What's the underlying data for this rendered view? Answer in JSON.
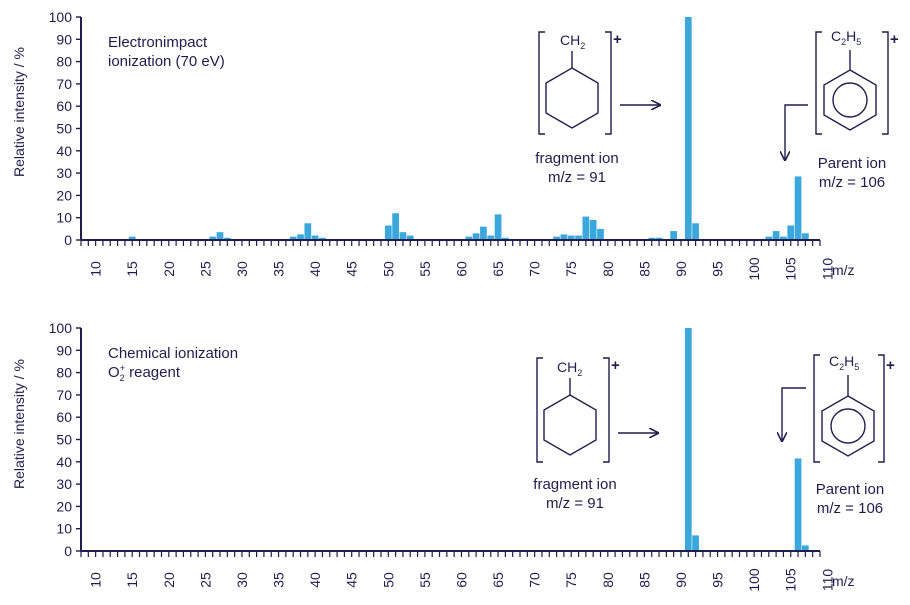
{
  "chart_data": [
    {
      "type": "bar",
      "title": "Electronimpact ionization (70 eV)",
      "title_lines": [
        "Electronimpact",
        "ionization (70 eV)"
      ],
      "xlabel": "m/z",
      "ylabel": "Relative intensity / %",
      "xlim": [
        8,
        109
      ],
      "ylim": [
        0,
        100
      ],
      "xticks": [
        10,
        15,
        20,
        25,
        30,
        35,
        40,
        45,
        50,
        55,
        60,
        65,
        70,
        75,
        80,
        85,
        90,
        95,
        100,
        105,
        110
      ],
      "yticks": [
        0,
        10,
        20,
        30,
        40,
        50,
        60,
        70,
        80,
        90,
        100
      ],
      "color": "#3aa8dc",
      "peaks": [
        {
          "x": 15,
          "y": 1.5
        },
        {
          "x": 26,
          "y": 1.5
        },
        {
          "x": 27,
          "y": 3.5
        },
        {
          "x": 28,
          "y": 1
        },
        {
          "x": 37,
          "y": 1.5
        },
        {
          "x": 38,
          "y": 2.5
        },
        {
          "x": 39,
          "y": 7.5
        },
        {
          "x": 40,
          "y": 2
        },
        {
          "x": 41,
          "y": 1
        },
        {
          "x": 50,
          "y": 6.5
        },
        {
          "x": 51,
          "y": 12
        },
        {
          "x": 52,
          "y": 3.5
        },
        {
          "x": 53,
          "y": 2
        },
        {
          "x": 61,
          "y": 1.5
        },
        {
          "x": 62,
          "y": 3
        },
        {
          "x": 63,
          "y": 6
        },
        {
          "x": 64,
          "y": 2
        },
        {
          "x": 65,
          "y": 11.5
        },
        {
          "x": 66,
          "y": 1
        },
        {
          "x": 73,
          "y": 1.5
        },
        {
          "x": 74,
          "y": 2.5
        },
        {
          "x": 75,
          "y": 2
        },
        {
          "x": 76,
          "y": 2
        },
        {
          "x": 77,
          "y": 10.5
        },
        {
          "x": 78,
          "y": 9
        },
        {
          "x": 79,
          "y": 5
        },
        {
          "x": 86,
          "y": 1
        },
        {
          "x": 87,
          "y": 1
        },
        {
          "x": 89,
          "y": 4
        },
        {
          "x": 91,
          "y": 100
        },
        {
          "x": 92,
          "y": 7.5
        },
        {
          "x": 102,
          "y": 1.5
        },
        {
          "x": 103,
          "y": 4
        },
        {
          "x": 104,
          "y": 1.5
        },
        {
          "x": 105,
          "y": 6.5
        },
        {
          "x": 106,
          "y": 28.5
        },
        {
          "x": 107,
          "y": 3
        }
      ],
      "annotations": {
        "fragment": {
          "formula_main": "CH",
          "formula_sub": "2",
          "charge": "+",
          "label": "fragment ion",
          "mz": "m/z = 91"
        },
        "parent": {
          "formula_c": "C",
          "formula_c_sub": "2",
          "formula_h": "H",
          "formula_h_sub": "5",
          "charge": "+",
          "label": "Parent ion",
          "mz": "m/z = 106"
        }
      }
    },
    {
      "type": "bar",
      "title": "Chemical ionization O2+ reagent",
      "title_lines": [
        "Chemical ionization"
      ],
      "title_reagent": {
        "main": "O",
        "sub": "2",
        "sup": "+",
        "rest": " reagent"
      },
      "xlabel": "m/z",
      "ylabel": "Relative intensity / %",
      "xlim": [
        8,
        109
      ],
      "ylim": [
        0,
        100
      ],
      "xticks": [
        10,
        15,
        20,
        25,
        30,
        35,
        40,
        45,
        50,
        55,
        60,
        65,
        70,
        75,
        80,
        85,
        90,
        95,
        100,
        105,
        110
      ],
      "yticks": [
        0,
        10,
        20,
        30,
        40,
        50,
        60,
        70,
        80,
        90,
        100
      ],
      "color": "#3aa8dc",
      "peaks": [
        {
          "x": 91,
          "y": 100
        },
        {
          "x": 92,
          "y": 7
        },
        {
          "x": 106,
          "y": 41.5
        },
        {
          "x": 107,
          "y": 2.5
        }
      ],
      "annotations": {
        "fragment": {
          "formula_main": "CH",
          "formula_sub": "2",
          "charge": "+",
          "label": "fragment ion",
          "mz": "m/z = 91"
        },
        "parent": {
          "formula_c": "C",
          "formula_c_sub": "2",
          "formula_h": "H",
          "formula_h_sub": "5",
          "charge": "+",
          "label": "Parent ion",
          "mz": "m/z = 106"
        }
      }
    }
  ]
}
